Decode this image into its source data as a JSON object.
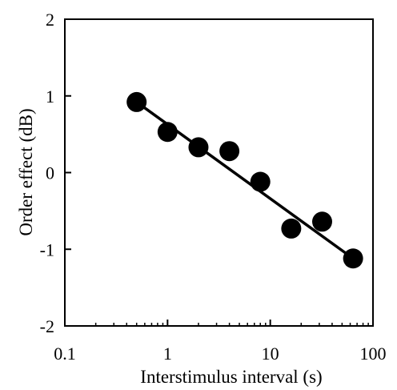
{
  "chart_data": {
    "type": "scatter",
    "title": "",
    "xlabel": "Interstimulus interval  (s)",
    "ylabel": "Order effect  (dB)",
    "xscale": "log",
    "xlim": [
      0.1,
      100
    ],
    "ylim": [
      -2,
      2
    ],
    "xticks": [
      0.1,
      1,
      10,
      100
    ],
    "xtick_labels": [
      "0.1",
      "1",
      "10",
      "100"
    ],
    "yticks": [
      -2,
      -1,
      0,
      1,
      2
    ],
    "ytick_labels": [
      "-2",
      "-1",
      "0",
      "1",
      "2"
    ],
    "grid": false,
    "legend": "none",
    "marker_color": "#000000",
    "line_color": "#000000",
    "points": {
      "x": [
        0.5,
        1,
        2,
        4,
        8,
        16,
        32,
        64
      ],
      "y": [
        0.92,
        0.53,
        0.33,
        0.28,
        -0.12,
        -0.73,
        -0.64,
        -1.12
      ]
    },
    "fit_line": {
      "x": [
        0.5,
        64
      ],
      "y": [
        0.92,
        -1.12
      ]
    }
  }
}
